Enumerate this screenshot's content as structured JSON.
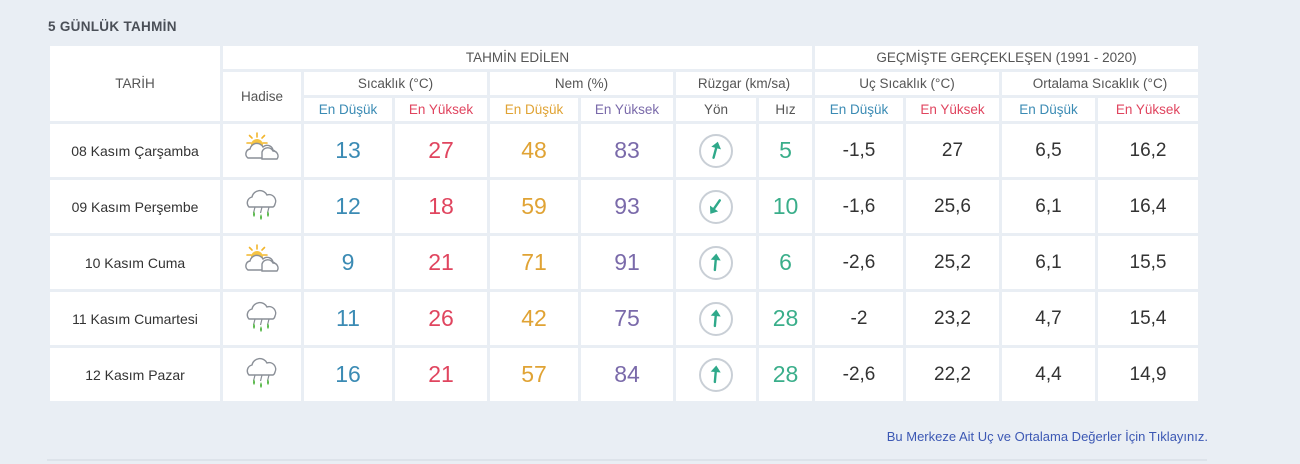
{
  "title": "5 GÜNLÜK TAHMİN",
  "headers": {
    "tarih": "TARİH",
    "predicted": "TAHMİN EDİLEN",
    "past": "GEÇMİŞTE GERÇEKLEŞEN (1991 - 2020)",
    "hadise": "Hadise",
    "sicaklik": "Sıcaklık (°C)",
    "nem": "Nem (%)",
    "ruzgar": "Rüzgar (km/sa)",
    "uc_sicaklik": "Uç Sıcaklık (°C)",
    "ort_sicaklik": "Ortalama Sıcaklık (°C)",
    "en_dusuk": "En Düşük",
    "en_yuksek": "En Yüksek",
    "yon": "Yön",
    "hiz": "Hız"
  },
  "rows": [
    {
      "date": "08 Kasım Çarşamba",
      "icon": "partly-cloudy-icon",
      "t_min": "13",
      "t_max": "27",
      "h_min": "48",
      "h_max": "83",
      "wind_dir_deg": 15,
      "wind_speed": "5",
      "past_min": "-1,5",
      "past_max": "27",
      "avg_min": "6,5",
      "avg_max": "16,2"
    },
    {
      "date": "09 Kasım Perşembe",
      "icon": "rain-icon",
      "t_min": "12",
      "t_max": "18",
      "h_min": "59",
      "h_max": "93",
      "wind_dir_deg": 215,
      "wind_speed": "10",
      "past_min": "-1,6",
      "past_max": "25,6",
      "avg_min": "6,1",
      "avg_max": "16,4"
    },
    {
      "date": "10 Kasım Cuma",
      "icon": "partly-cloudy-icon",
      "t_min": "9",
      "t_max": "21",
      "h_min": "71",
      "h_max": "91",
      "wind_dir_deg": 5,
      "wind_speed": "6",
      "past_min": "-2,6",
      "past_max": "25,2",
      "avg_min": "6,1",
      "avg_max": "15,5"
    },
    {
      "date": "11 Kasım Cumartesi",
      "icon": "rain-icon",
      "t_min": "11",
      "t_max": "26",
      "h_min": "42",
      "h_max": "75",
      "wind_dir_deg": 5,
      "wind_speed": "28",
      "past_min": "-2",
      "past_max": "23,2",
      "avg_min": "4,7",
      "avg_max": "15,4"
    },
    {
      "date": "12 Kasım Pazar",
      "icon": "rain-icon",
      "t_min": "16",
      "t_max": "21",
      "h_min": "57",
      "h_max": "84",
      "wind_dir_deg": 5,
      "wind_speed": "28",
      "past_min": "-2,6",
      "past_max": "22,2",
      "avg_min": "4,4",
      "avg_max": "14,9"
    }
  ],
  "footer_link": "Bu Merkeze Ait Uç ve Ortalama Değerler İçin Tıklayınız.",
  "colors": {
    "low": "#3b8bb4",
    "high": "#e0455f",
    "hum_low": "#e0a334",
    "hum_high": "#7a6aaa",
    "speed": "#3aae8a",
    "arrow": "#2fa98a"
  }
}
